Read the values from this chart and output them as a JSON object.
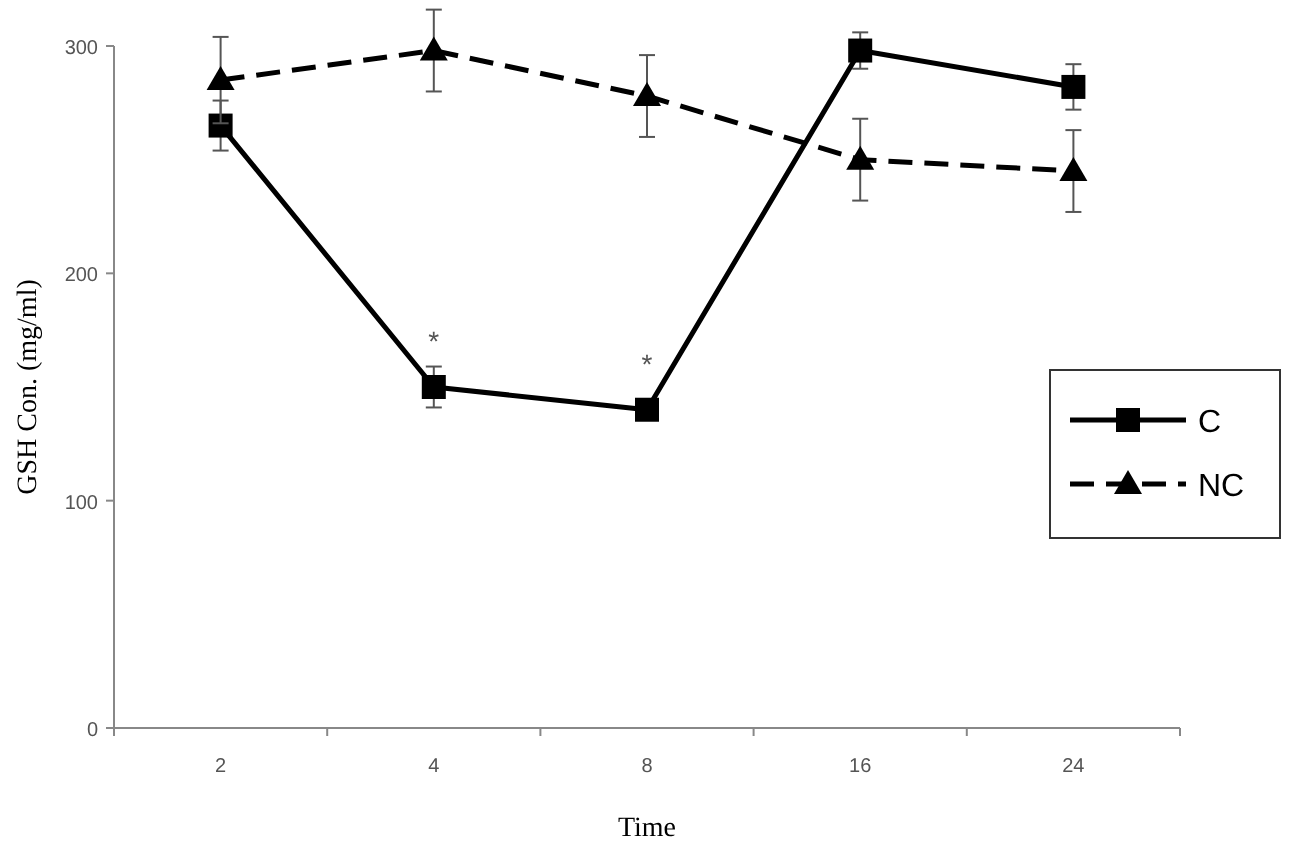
{
  "chart_data": {
    "type": "line",
    "xlabel": "Time",
    "ylabel": "GSH Con. (mg/ml)",
    "categories": [
      "2",
      "4",
      "8",
      "16",
      "24"
    ],
    "series": [
      {
        "name": "C",
        "color": "#000000",
        "values": [
          265,
          150,
          140,
          298,
          282
        ],
        "errors": [
          11,
          9,
          null,
          8,
          10
        ],
        "marker": "square",
        "line_style": "solid"
      },
      {
        "name": "NC",
        "color": "#000000",
        "values": [
          285,
          298,
          278,
          250,
          245
        ],
        "errors": [
          19,
          18,
          18,
          18,
          18
        ],
        "marker": "triangle",
        "line_style": "dashed"
      }
    ],
    "ylim": [
      0,
      300
    ],
    "yticks": [
      0,
      100,
      200,
      300
    ],
    "grid": false,
    "legend": "right",
    "annotations": [
      {
        "text": "*",
        "x": "4",
        "y": 150
      },
      {
        "text": "*",
        "x": "8",
        "y": 140
      }
    ]
  }
}
